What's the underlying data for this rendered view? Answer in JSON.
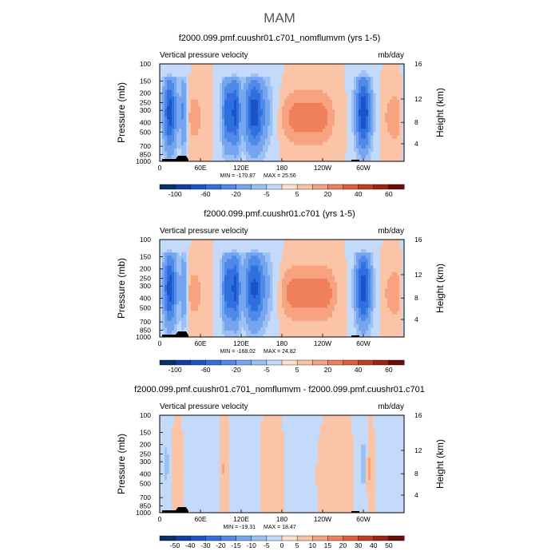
{
  "page_title": "MAM",
  "chart_data": [
    {
      "type": "heatmap",
      "title": "f2000.099.pmf.cuushr01.c701_nomflumvm (yrs 1-5)",
      "left_label": "Vertical pressure velocity",
      "right_label": "mb/day",
      "xlabel": "",
      "ylabel": "Pressure (mb)",
      "ylabel_right": "Height (km)",
      "x_ticks": [
        "0",
        "60E",
        "120E",
        "180",
        "120W",
        "60W"
      ],
      "y_ticks": [
        "100",
        "150",
        "200",
        "250",
        "300",
        "400",
        "500",
        "700",
        "850",
        "1000"
      ],
      "height_ticks": [
        "4",
        "8",
        "12",
        "16"
      ],
      "min_label": "MIN = -170.87",
      "max_label": "MAX = 25.56",
      "min": -170.87,
      "max": 25.56,
      "colorbar_labels": [
        "-100",
        "-60",
        "-20",
        "-5",
        "5",
        "20",
        "40",
        "60"
      ],
      "bands": [
        {
          "lon": 15,
          "width": 14,
          "value": -90
        },
        {
          "lon": 35,
          "width": 7,
          "value": -45
        },
        {
          "lon": 100,
          "width": 12,
          "value": -75
        },
        {
          "lon": 112,
          "width": 9,
          "value": -75
        },
        {
          "lon": 138,
          "width": 20,
          "value": -75
        },
        {
          "lon": 150,
          "width": 28,
          "value": -25
        },
        {
          "lon": 300,
          "width": 16,
          "value": -100
        },
        {
          "lon": 50,
          "width": 20,
          "value": 8
        },
        {
          "lon": 205,
          "width": 48,
          "value": 13
        },
        {
          "lon": 240,
          "width": 28,
          "value": 8
        },
        {
          "lon": 345,
          "width": 22,
          "value": 9
        }
      ]
    },
    {
      "type": "heatmap",
      "title": "f2000.099.pmf.cuushr01.c701 (yrs 1-5)",
      "left_label": "Vertical pressure velocity",
      "right_label": "mb/day",
      "xlabel": "",
      "ylabel": "Pressure (mb)",
      "ylabel_right": "Height (km)",
      "x_ticks": [
        "0",
        "60E",
        "120E",
        "180",
        "120W",
        "60W"
      ],
      "y_ticks": [
        "100",
        "150",
        "200",
        "250",
        "300",
        "400",
        "500",
        "700",
        "850",
        "1000"
      ],
      "height_ticks": [
        "4",
        "8",
        "12",
        "16"
      ],
      "min_label": "MIN = -168.02",
      "max_label": "MAX = 24.82",
      "min": -168.02,
      "max": 24.82,
      "colorbar_labels": [
        "-100",
        "-60",
        "-20",
        "-5",
        "5",
        "20",
        "40",
        "60"
      ],
      "bands": [
        {
          "lon": 15,
          "width": 14,
          "value": -90
        },
        {
          "lon": 35,
          "width": 7,
          "value": -40
        },
        {
          "lon": 100,
          "width": 12,
          "value": -75
        },
        {
          "lon": 112,
          "width": 9,
          "value": -75
        },
        {
          "lon": 138,
          "width": 20,
          "value": -70
        },
        {
          "lon": 150,
          "width": 28,
          "value": -25
        },
        {
          "lon": 300,
          "width": 16,
          "value": -95
        },
        {
          "lon": 50,
          "width": 20,
          "value": 8
        },
        {
          "lon": 205,
          "width": 48,
          "value": 14
        },
        {
          "lon": 245,
          "width": 25,
          "value": 10
        },
        {
          "lon": 345,
          "width": 22,
          "value": 9
        }
      ]
    },
    {
      "type": "heatmap",
      "title": "f2000.099.pmf.cuushr01.c701_nomflumvm - f2000.099.pmf.cuushr01.c701",
      "left_label": "Vertical pressure velocity",
      "right_label": "mb/day",
      "xlabel": "",
      "ylabel": "Pressure (mb)",
      "ylabel_right": "Height (km)",
      "x_ticks": [
        "0",
        "60E",
        "120E",
        "180",
        "120W",
        "60W"
      ],
      "y_ticks": [
        "100",
        "150",
        "200",
        "250",
        "300",
        "400",
        "500",
        "700",
        "850",
        "1000"
      ],
      "height_ticks": [
        "4",
        "8",
        "12",
        "16"
      ],
      "min_label": "MIN = -19.31",
      "max_label": "MAX = 18.47",
      "min": -19.31,
      "max": 18.47,
      "colorbar_labels": [
        "-50",
        "-40",
        "-30",
        "-20",
        "-15",
        "-10",
        "-5",
        "0",
        "5",
        "10",
        "15",
        "20",
        "30",
        "40",
        "50"
      ],
      "bands": [
        {
          "lon": 10,
          "width": 8,
          "value": -6
        },
        {
          "lon": 25,
          "width": 10,
          "value": 4
        },
        {
          "lon": 60,
          "width": 25,
          "value": -3
        },
        {
          "lon": 95,
          "width": 6,
          "value": 6
        },
        {
          "lon": 115,
          "width": 8,
          "value": -4
        },
        {
          "lon": 140,
          "width": 10,
          "value": -3
        },
        {
          "lon": 155,
          "width": 8,
          "value": 5
        },
        {
          "lon": 175,
          "width": 10,
          "value": 4
        },
        {
          "lon": 210,
          "width": 30,
          "value": -3
        },
        {
          "lon": 245,
          "width": 20,
          "value": 3
        },
        {
          "lon": 300,
          "width": 6,
          "value": -8
        },
        {
          "lon": 310,
          "width": 6,
          "value": 7
        },
        {
          "lon": 345,
          "width": 30,
          "value": -2
        }
      ]
    }
  ]
}
